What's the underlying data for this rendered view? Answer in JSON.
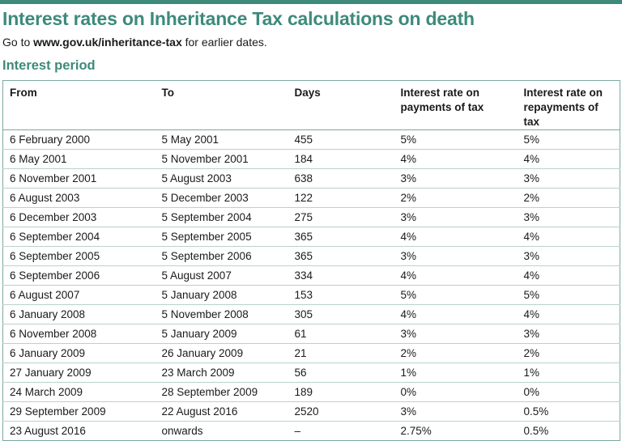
{
  "title": "Interest rates on Inheritance Tax calculations on death",
  "subtitle": {
    "prefix": "Go to ",
    "link": "www.gov.uk/inheritance-tax",
    "suffix": " for earlier dates."
  },
  "section_heading": "Interest period",
  "table": {
    "headers": {
      "from": "From",
      "to": "To",
      "days": "Days",
      "payments_line1": "Interest rate on",
      "payments_line2": "payments of tax",
      "repayments_line1": "Interest rate on",
      "repayments_line2": "repayments of tax"
    },
    "rows": [
      [
        "6 February 2000",
        "5 May 2001",
        "455",
        "5%",
        "5%"
      ],
      [
        "6 May 2001",
        "5 November 2001",
        "184",
        "4%",
        "4%"
      ],
      [
        "6 November 2001",
        "5 August 2003",
        "638",
        "3%",
        "3%"
      ],
      [
        "6 August 2003",
        "5 December 2003",
        "122",
        "2%",
        "2%"
      ],
      [
        "6 December 2003",
        "5 September 2004",
        "275",
        "3%",
        "3%"
      ],
      [
        "6 September 2004",
        "5 September 2005",
        "365",
        "4%",
        "4%"
      ],
      [
        "6 September 2005",
        "5 September 2006",
        "365",
        "3%",
        "3%"
      ],
      [
        "6 September 2006",
        "5 August 2007",
        "334",
        "4%",
        "4%"
      ],
      [
        "6 August 2007",
        "5 January 2008",
        "153",
        "5%",
        "5%"
      ],
      [
        "6 January 2008",
        "5 November 2008",
        "305",
        "4%",
        "4%"
      ],
      [
        "6 November 2008",
        "5 January 2009",
        "61",
        "3%",
        "3%"
      ],
      [
        "6 January 2009",
        "26 January 2009",
        "21",
        "2%",
        "2%"
      ],
      [
        "27 January 2009",
        "23 March 2009",
        "56",
        "1%",
        "1%"
      ],
      [
        "24 March 2009",
        "28 September 2009",
        "189",
        "0%",
        "0%"
      ],
      [
        "29 September 2009",
        "22 August 2016",
        "2520",
        "3%",
        "0.5%"
      ],
      [
        "23 August 2016",
        "onwards",
        "–",
        "2.75%",
        "0.5%"
      ]
    ]
  }
}
